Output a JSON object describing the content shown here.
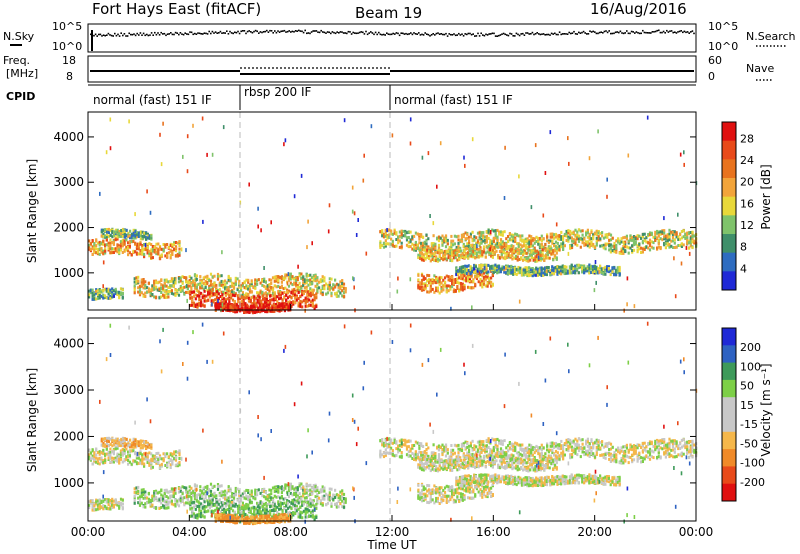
{
  "header": {
    "station": "Fort Hays East (fitACF)",
    "beam": "Beam 19",
    "date": "16/Aug/2016"
  },
  "strip_panels": {
    "nsky": {
      "label": "N.Sky",
      "ticks": [
        "10^5",
        "10^0"
      ]
    },
    "nsearch": {
      "label": "N.Search",
      "ticks": [
        "10^5",
        "10^0"
      ]
    },
    "freq": {
      "label_top": "Freq.",
      "label_bottom": "[MHz]",
      "ticks": [
        "18",
        "8"
      ]
    },
    "nave": {
      "label": "Nave",
      "ticks": [
        "60",
        "0"
      ]
    },
    "cpid": {
      "label": "CPID",
      "segments": [
        {
          "name": "normal (fast) 151 IF",
          "start": 0,
          "end": 6
        },
        {
          "name": "rbsp 200 IF",
          "start": 6,
          "end": 12
        },
        {
          "name": "normal (fast) 151 IF",
          "start": 12,
          "end": 24
        }
      ]
    }
  },
  "colors": {
    "power": [
      "#1f29d6",
      "#2e6cc0",
      "#3f8f6a",
      "#7fc36b",
      "#e8d83a",
      "#f2a43a",
      "#e8731e",
      "#e84a1a",
      "#e01010"
    ],
    "velocity": [
      "#e01010",
      "#e84a1a",
      "#f08a28",
      "#f5b74a",
      "#c8c8c8",
      "#c8c8c8",
      "#7dcf47",
      "#3e9a5a",
      "#2e62c2",
      "#1f29d6"
    ],
    "groundscatter": "#bdbdbd"
  },
  "chart_data": [
    {
      "type": "heatmap",
      "title": "",
      "xlabel": "",
      "ylabel": "Slant Range [km]",
      "xlim": [
        0,
        24
      ],
      "ylim": [
        180,
        4550
      ],
      "x_ticks": [
        "00:00",
        "04:00",
        "08:00",
        "12:00",
        "16:00",
        "20:00",
        "00:00"
      ],
      "y_ticks": [
        1000,
        2000,
        3000,
        4000
      ],
      "colorbar": {
        "label": "Power [dB]",
        "ticks": [
          "4",
          "8",
          "12",
          "16",
          "20",
          "24",
          "28"
        ],
        "range": [
          0,
          30
        ]
      },
      "grid": false,
      "mode_boundaries_hours": [
        6,
        12
      ],
      "scatter_regions": [
        {
          "t_start": 0.0,
          "t_end": 3.6,
          "range_center": 1570,
          "range_half_width": 170,
          "power_db": 19
        },
        {
          "t_start": 0.5,
          "t_end": 2.5,
          "range_center": 1880,
          "range_half_width": 90,
          "power_db": 11
        },
        {
          "t_start": 0.0,
          "t_end": 1.4,
          "range_center": 540,
          "range_half_width": 110,
          "power_db": 10
        },
        {
          "t_start": 1.8,
          "t_end": 10.2,
          "range_center": 750,
          "range_half_width": 200,
          "power_db": 16
        },
        {
          "t_start": 4.0,
          "t_end": 9.0,
          "range_center": 400,
          "range_half_width": 180,
          "power_db": 24
        },
        {
          "t_start": 5.0,
          "t_end": 8.0,
          "range_center": 260,
          "range_half_width": 80,
          "power_db": 29
        },
        {
          "t_start": 11.5,
          "t_end": 24.0,
          "range_center": 1720,
          "range_half_width": 200,
          "power_db": 15
        },
        {
          "t_start": 13.0,
          "t_end": 18.5,
          "range_center": 1460,
          "range_half_width": 130,
          "power_db": 17
        },
        {
          "t_start": 13.0,
          "t_end": 16.0,
          "range_center": 850,
          "range_half_width": 200,
          "power_db": 20
        },
        {
          "t_start": 14.5,
          "t_end": 21.0,
          "range_center": 1090,
          "range_half_width": 90,
          "power_db": 10
        }
      ]
    },
    {
      "type": "heatmap",
      "title": "",
      "xlabel": "Time UT",
      "ylabel": "Slant Range [km]",
      "xlim": [
        0,
        24
      ],
      "ylim": [
        180,
        4550
      ],
      "x_ticks": [
        "00:00",
        "04:00",
        "08:00",
        "12:00",
        "16:00",
        "20:00",
        "00:00"
      ],
      "y_ticks": [
        1000,
        2000,
        3000,
        4000
      ],
      "colorbar": {
        "label": "Velocity [m s⁻¹]",
        "ticks": [
          "-200",
          "-100",
          "-50",
          "-15",
          "15",
          "50",
          "100",
          "200"
        ],
        "range": [
          -250,
          250
        ]
      },
      "grid": false,
      "mode_boundaries_hours": [
        6,
        12
      ],
      "scatter_regions": [
        {
          "t_start": 0.0,
          "t_end": 3.6,
          "range_center": 1570,
          "range_half_width": 170,
          "velocity": 0
        },
        {
          "t_start": 0.5,
          "t_end": 2.5,
          "range_center": 1880,
          "range_half_width": 90,
          "velocity": -30
        },
        {
          "t_start": 0.0,
          "t_end": 1.4,
          "range_center": 540,
          "range_half_width": 110,
          "velocity": 0
        },
        {
          "t_start": 1.8,
          "t_end": 10.2,
          "range_center": 750,
          "range_half_width": 200,
          "velocity": 20
        },
        {
          "t_start": 4.0,
          "t_end": 9.0,
          "range_center": 400,
          "range_half_width": 180,
          "velocity": 40
        },
        {
          "t_start": 5.0,
          "t_end": 8.0,
          "range_center": 260,
          "range_half_width": 80,
          "velocity": -60
        },
        {
          "t_start": 11.5,
          "t_end": 24.0,
          "range_center": 1720,
          "range_half_width": 200,
          "velocity": 0
        },
        {
          "t_start": 13.0,
          "t_end": 18.5,
          "range_center": 1460,
          "range_half_width": 130,
          "velocity": 0
        },
        {
          "t_start": 13.0,
          "t_end": 16.0,
          "range_center": 850,
          "range_half_width": 200,
          "velocity": 0
        },
        {
          "t_start": 14.5,
          "t_end": 21.0,
          "range_center": 1090,
          "range_half_width": 90,
          "velocity": 0
        }
      ]
    }
  ]
}
